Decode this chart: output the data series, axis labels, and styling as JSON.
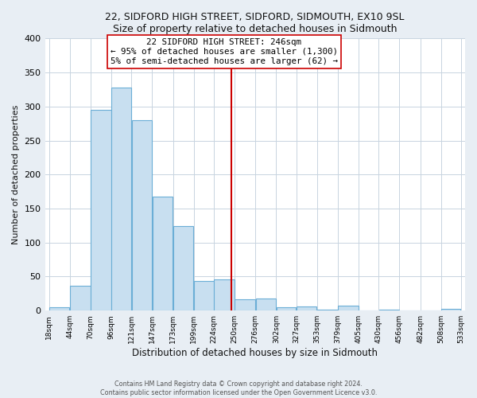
{
  "title1": "22, SIDFORD HIGH STREET, SIDFORD, SIDMOUTH, EX10 9SL",
  "title2": "Size of property relative to detached houses in Sidmouth",
  "xlabel": "Distribution of detached houses by size in Sidmouth",
  "ylabel": "Number of detached properties",
  "bar_left_edges": [
    18,
    44,
    70,
    96,
    121,
    147,
    173,
    199,
    224,
    250,
    276,
    302,
    327,
    353,
    379,
    405,
    430,
    456,
    482,
    508
  ],
  "bar_widths": [
    26,
    26,
    26,
    25,
    26,
    26,
    26,
    25,
    26,
    26,
    26,
    25,
    26,
    26,
    26,
    25,
    26,
    26,
    26,
    25
  ],
  "bar_heights": [
    5,
    37,
    295,
    328,
    280,
    168,
    124,
    44,
    46,
    17,
    18,
    5,
    6,
    1,
    7,
    0,
    1,
    0,
    0,
    2
  ],
  "bar_color": "#c8dff0",
  "bar_edge_color": "#6baed6",
  "x_tick_labels": [
    "18sqm",
    "44sqm",
    "70sqm",
    "96sqm",
    "121sqm",
    "147sqm",
    "173sqm",
    "199sqm",
    "224sqm",
    "250sqm",
    "276sqm",
    "302sqm",
    "327sqm",
    "353sqm",
    "379sqm",
    "405sqm",
    "430sqm",
    "456sqm",
    "482sqm",
    "508sqm",
    "533sqm"
  ],
  "vline_x": 246,
  "vline_color": "#cc0000",
  "annotation_text_line1": "22 SIDFORD HIGH STREET: 246sqm",
  "annotation_text_line2": "← 95% of detached houses are smaller (1,300)",
  "annotation_text_line3": "5% of semi-detached houses are larger (62) →",
  "annotation_box_color": "#ffffff",
  "annotation_box_edge": "#cc0000",
  "ylim": [
    0,
    400
  ],
  "yticks": [
    0,
    50,
    100,
    150,
    200,
    250,
    300,
    350,
    400
  ],
  "footer1": "Contains HM Land Registry data © Crown copyright and database right 2024.",
  "footer2": "Contains public sector information licensed under the Open Government Licence v3.0.",
  "background_color": "#e8eef4",
  "plot_background": "#ffffff",
  "grid_color": "#c8d4e0"
}
